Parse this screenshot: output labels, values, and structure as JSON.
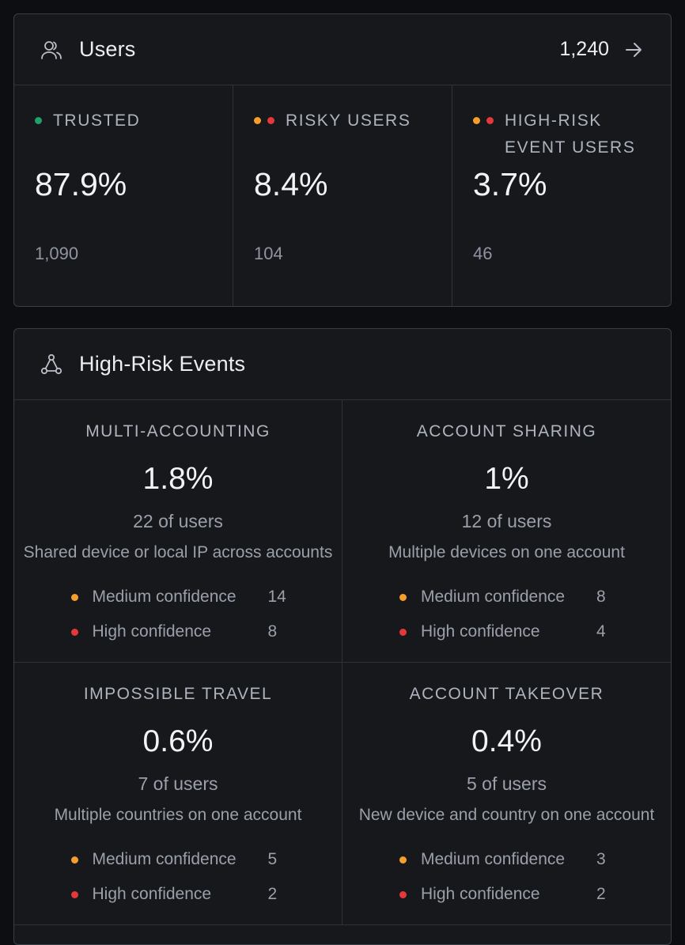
{
  "users": {
    "title": "Users",
    "total": "1,240",
    "icon": "users-icon",
    "stats": [
      {
        "label_lines": [
          "TRUSTED"
        ],
        "dots": [
          "#22a06b"
        ],
        "pct": "87.9%",
        "count": "1,090"
      },
      {
        "label_lines": [
          "RISKY USERS"
        ],
        "dots": [
          "#f59e2c",
          "#e5383b"
        ],
        "pct": "8.4%",
        "count": "104"
      },
      {
        "label_lines": [
          "HIGH-RISK",
          "EVENT USERS"
        ],
        "dots": [
          "#f59e2c",
          "#e5383b"
        ],
        "pct": "3.7%",
        "count": "46"
      }
    ]
  },
  "events": {
    "title": "High-Risk Events",
    "icon": "network-icon",
    "items": [
      {
        "title": "MULTI-ACCOUNTING",
        "pct": "1.8%",
        "users": "22 of users",
        "desc": "Shared device or local IP across accounts",
        "medium_label": "Medium confidence",
        "medium": "14",
        "high_label": "High confidence",
        "high": "8"
      },
      {
        "title": "ACCOUNT SHARING",
        "pct": "1%",
        "users": "12 of users",
        "desc": "Multiple devices on one account",
        "medium_label": "Medium confidence",
        "medium": "8",
        "high_label": "High confidence",
        "high": "4"
      },
      {
        "title": "IMPOSSIBLE TRAVEL",
        "pct": "0.6%",
        "users": "7 of users",
        "desc": "Multiple countries on one account",
        "medium_label": "Medium confidence",
        "medium": "5",
        "high_label": "High confidence",
        "high": "2"
      },
      {
        "title": "ACCOUNT TAKEOVER",
        "pct": "0.4%",
        "users": "5 of users",
        "desc": "New device and country on one account",
        "medium_label": "Medium confidence",
        "medium": "3",
        "high_label": "High confidence",
        "high": "2"
      }
    ]
  },
  "colors": {
    "medium": "#f59e2c",
    "high": "#e5383b",
    "trusted": "#22a06b"
  }
}
